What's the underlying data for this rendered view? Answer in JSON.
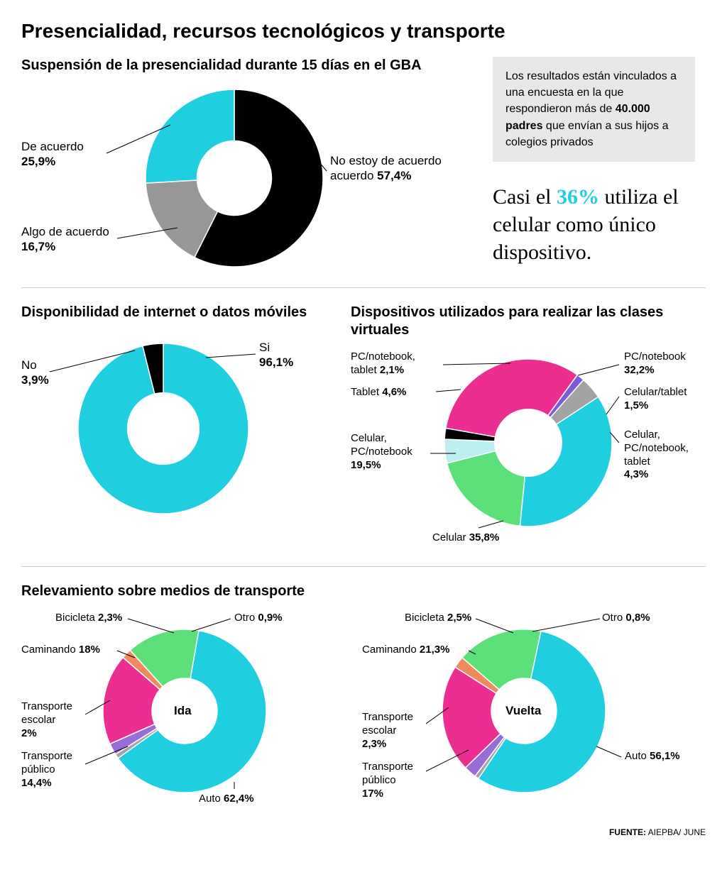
{
  "title": "Presencialidad, recursos tecnológicos y transporte",
  "sidebar_note_pre": "Los resultados están vinculados a una encuesta en la que respondieron más de ",
  "sidebar_note_bold": "40.000 padres",
  "sidebar_note_post": " que envían a sus hijos a colegios privados",
  "callout_pre": "Casi el ",
  "callout_highlight": "36%",
  "callout_post": " utiliza el celular como único dispositivo.",
  "footer_label": "FUENTE:",
  "footer_value": " AIEPBA/ JUNE",
  "chart1": {
    "title": "Suspensión de la presencialidad durante 15 días en el GBA",
    "inner_ratio": 0.42,
    "slices": [
      {
        "label": "No estoy de acuerdo",
        "value": 57.4,
        "display": "57,4%",
        "color": "#000000"
      },
      {
        "label": "Algo de acuerdo",
        "value": 16.7,
        "display": "16,7%",
        "color": "#979797"
      },
      {
        "label": "De acuerdo",
        "value": 25.9,
        "display": "25,9%",
        "color": "#1fcfe0"
      }
    ]
  },
  "chart2": {
    "title": "Disponibilidad de internet o datos móviles",
    "inner_ratio": 0.42,
    "slices": [
      {
        "label": "Si",
        "value": 96.1,
        "display": "96,1%",
        "color": "#1fcfe0"
      },
      {
        "label": "No",
        "value": 3.9,
        "display": "3,9%",
        "color": "#000000"
      }
    ]
  },
  "chart3": {
    "title": "Dispositivos utilizados para realizar las clases virtuales",
    "inner_ratio": 0.4,
    "start_angle": -80,
    "slices": [
      {
        "label": "PC/notebook",
        "value": 32.2,
        "display": "32,2%",
        "color": "#ed2e91"
      },
      {
        "label": "Celular/tablet",
        "value": 1.5,
        "display": "1,5%",
        "color": "#7a5dd6"
      },
      {
        "label": "Celular, PC/notebook, tablet",
        "value": 4.3,
        "display": "4,3%",
        "color": "#a3a3a3"
      },
      {
        "label": "Celular",
        "value": 35.8,
        "display": "35,8%",
        "color": "#1fcfe0"
      },
      {
        "label": "Celular, PC/notebook",
        "value": 19.5,
        "display": "19,5%",
        "color": "#5ce07a"
      },
      {
        "label": "Tablet",
        "value": 4.6,
        "display": "4,6%",
        "color": "#bdeef2"
      },
      {
        "label": "PC/notebook, tablet",
        "value": 2.1,
        "display": "2,1%",
        "color": "#000000"
      }
    ]
  },
  "chart4": {
    "title": "Relevamiento sobre medios de transporte",
    "center_label": "Ida",
    "inner_ratio": 0.4,
    "start_angle": 10,
    "slices": [
      {
        "label": "Auto",
        "value": 62.4,
        "display": "62,4%",
        "color": "#1fcfe0"
      },
      {
        "label": "Otro",
        "value": 0.9,
        "display": "0,9%",
        "color": "#a3a3a3"
      },
      {
        "label": "Bicicleta",
        "value": 2.3,
        "display": "2,3%",
        "color": "#9a6dd6"
      },
      {
        "label": "Caminando",
        "value": 18.0,
        "display": "18%",
        "color": "#ed2e91"
      },
      {
        "label": "Transporte escolar",
        "value": 2.0,
        "display": "2%",
        "color": "#f0895d"
      },
      {
        "label": "Transporte público",
        "value": 14.4,
        "display": "14,4%",
        "color": "#5ce07a"
      }
    ]
  },
  "chart5": {
    "center_label": "Vuelta",
    "inner_ratio": 0.4,
    "start_angle": 12,
    "slices": [
      {
        "label": "Auto",
        "value": 56.1,
        "display": "56,1%",
        "color": "#1fcfe0"
      },
      {
        "label": "Otro",
        "value": 0.8,
        "display": "0,8%",
        "color": "#a3a3a3"
      },
      {
        "label": "Bicicleta",
        "value": 2.5,
        "display": "2,5%",
        "color": "#9a6dd6"
      },
      {
        "label": "Caminando",
        "value": 21.3,
        "display": "21,3%",
        "color": "#ed2e91"
      },
      {
        "label": "Transporte escolar",
        "value": 2.3,
        "display": "2,3%",
        "color": "#f0895d"
      },
      {
        "label": "Transporte público",
        "value": 17.0,
        "display": "17%",
        "color": "#5ce07a"
      }
    ]
  }
}
